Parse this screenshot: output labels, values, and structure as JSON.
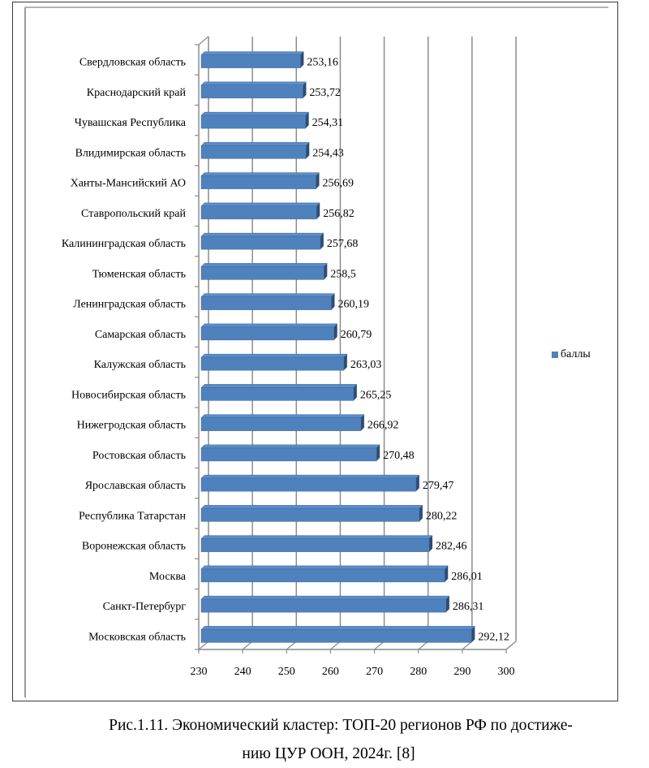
{
  "chart_data": {
    "type": "bar",
    "orientation": "horizontal",
    "style": "3d-clustered-bar",
    "categories": [
      "Свердловская область",
      "Краснодарский край",
      "Чувашская Республика",
      "Влидимирская область",
      "Ханты-Мансийский АО",
      "Ставропольский край",
      "Калининградская область",
      "Тюменская область",
      "Ленинградская область",
      "Самарская область",
      "Калужская область",
      "Новосибирская область",
      "Нижегродская область",
      "Ростовская область",
      "Ярославская область",
      "Республика Татарстан",
      "Воронежская область",
      "Москва",
      "Санкт-Петербург",
      "Московская область"
    ],
    "series": [
      {
        "name": "баллы",
        "color": "#4f81bd",
        "values": [
          253.16,
          253.72,
          254.31,
          254.43,
          256.69,
          256.82,
          257.68,
          258.5,
          260.19,
          260.79,
          263.03,
          265.25,
          266.92,
          270.48,
          279.47,
          280.22,
          282.46,
          286.01,
          286.31,
          292.12
        ],
        "value_labels": [
          "253,16",
          "253,72",
          "254,31",
          "254,43",
          "256,69",
          "256,82",
          "257,68",
          "258,5",
          "260,19",
          "260,79",
          "263,03",
          "265,25",
          "266,92",
          "270,48",
          "279,47",
          "280,22",
          "282,46",
          "286,01",
          "286,31",
          "292,12"
        ]
      }
    ],
    "xlim": [
      230,
      300
    ],
    "xticks": [
      230,
      240,
      250,
      260,
      270,
      280,
      290,
      300
    ],
    "xtick_labels": [
      "230",
      "240",
      "250",
      "260",
      "270",
      "280",
      "290",
      "300"
    ],
    "title": "",
    "xlabel": "",
    "ylabel": "",
    "grid": true,
    "legend": {
      "position": "right",
      "entries": [
        "баллы"
      ]
    }
  },
  "legend": {
    "label": "баллы",
    "color": "#4f81bd"
  },
  "caption": {
    "line1": "Рис.1.11. Экономический кластер: ТОП-20 регионов РФ  по достиже-",
    "line2": "нию ЦУР ООН, 2024г. [8]"
  }
}
